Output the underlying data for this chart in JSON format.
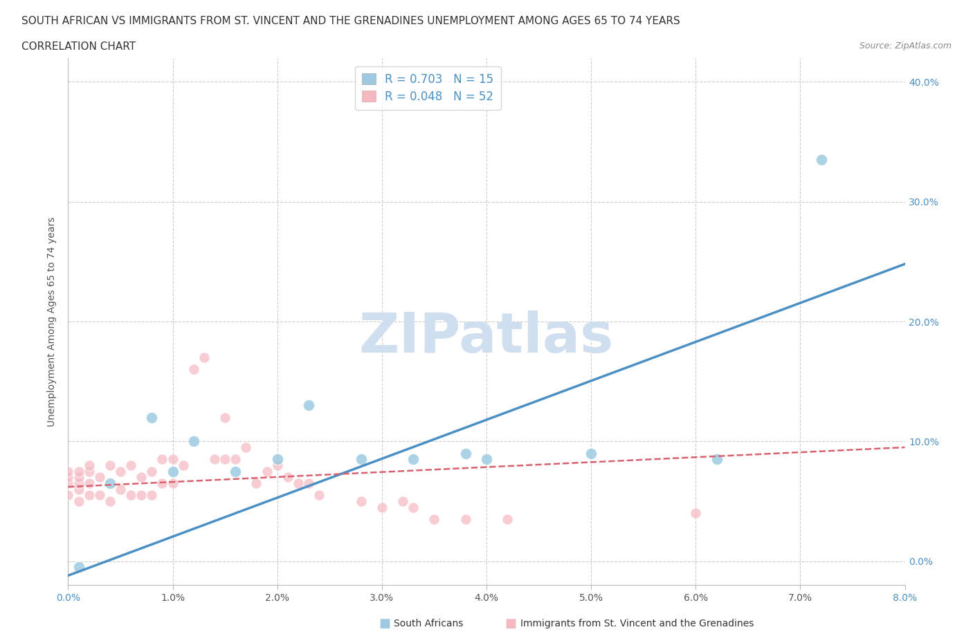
{
  "title_line1": "SOUTH AFRICAN VS IMMIGRANTS FROM ST. VINCENT AND THE GRENADINES UNEMPLOYMENT AMONG AGES 65 TO 74 YEARS",
  "title_line2": "CORRELATION CHART",
  "source_text": "Source: ZipAtlas.com",
  "ylabel": "Unemployment Among Ages 65 to 74 years",
  "xlim": [
    0.0,
    0.08
  ],
  "ylim": [
    -0.02,
    0.42
  ],
  "xtick_vals": [
    0.0,
    0.01,
    0.02,
    0.03,
    0.04,
    0.05,
    0.06,
    0.07,
    0.08
  ],
  "xtick_labels": [
    "0.0%",
    "1.0%",
    "2.0%",
    "3.0%",
    "4.0%",
    "5.0%",
    "6.0%",
    "7.0%",
    "8.0%"
  ],
  "ytick_vals": [
    0.0,
    0.1,
    0.2,
    0.3,
    0.4
  ],
  "ytick_labels": [
    "0.0%",
    "10.0%",
    "20.0%",
    "30.0%",
    "40.0%"
  ],
  "legend_label1": "R = 0.703   N = 15",
  "legend_label2": "R = 0.048   N = 52",
  "blue_color": "#9ecae1",
  "pink_color": "#f4b8c1",
  "blue_line_color": "#4a90c4",
  "pink_line_color": "#d9606e",
  "watermark_color": "#d0dff0",
  "background_color": "#ffffff",
  "grid_color": "#cccccc",
  "title_color": "#333333",
  "right_yaxis_color": "#4a90c4",
  "blue_scatter_x": [
    0.001,
    0.004,
    0.008,
    0.01,
    0.012,
    0.016,
    0.02,
    0.023,
    0.028,
    0.033,
    0.038,
    0.04,
    0.05,
    0.062,
    0.072
  ],
  "blue_scatter_y": [
    -0.005,
    0.065,
    0.12,
    0.075,
    0.1,
    0.075,
    0.085,
    0.13,
    0.085,
    0.085,
    0.09,
    0.085,
    0.09,
    0.085,
    0.335
  ],
  "pink_scatter_x": [
    0.0,
    0.0,
    0.0,
    0.0,
    0.001,
    0.001,
    0.001,
    0.001,
    0.001,
    0.002,
    0.002,
    0.002,
    0.002,
    0.003,
    0.003,
    0.004,
    0.004,
    0.005,
    0.005,
    0.006,
    0.006,
    0.007,
    0.007,
    0.008,
    0.008,
    0.009,
    0.009,
    0.01,
    0.01,
    0.011,
    0.012,
    0.013,
    0.014,
    0.015,
    0.015,
    0.016,
    0.017,
    0.018,
    0.019,
    0.02,
    0.021,
    0.022,
    0.023,
    0.024,
    0.028,
    0.03,
    0.032,
    0.033,
    0.035,
    0.038,
    0.042,
    0.06
  ],
  "pink_scatter_y": [
    0.055,
    0.065,
    0.07,
    0.075,
    0.05,
    0.06,
    0.065,
    0.07,
    0.075,
    0.055,
    0.065,
    0.075,
    0.08,
    0.055,
    0.07,
    0.05,
    0.08,
    0.06,
    0.075,
    0.055,
    0.08,
    0.055,
    0.07,
    0.055,
    0.075,
    0.065,
    0.085,
    0.065,
    0.085,
    0.08,
    0.16,
    0.17,
    0.085,
    0.12,
    0.085,
    0.085,
    0.095,
    0.065,
    0.075,
    0.08,
    0.07,
    0.065,
    0.065,
    0.055,
    0.05,
    0.045,
    0.05,
    0.045,
    0.035,
    0.035,
    0.035,
    0.04
  ],
  "blue_trend_x": [
    0.0,
    0.08
  ],
  "blue_trend_y": [
    -0.012,
    0.248
  ],
  "pink_trend_x": [
    0.0,
    0.08
  ],
  "pink_trend_y": [
    0.062,
    0.095
  ],
  "watermark_text": "ZIPatlas"
}
